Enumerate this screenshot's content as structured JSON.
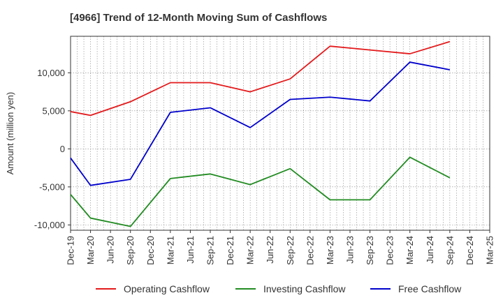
{
  "chart_data": {
    "type": "line",
    "title": "[4966]  Trend of 12-Month Moving Sum of Cashflows",
    "xlabel": "",
    "ylabel": "Amount (million yen)",
    "ylim": [
      -10700,
      14800
    ],
    "yticks": [
      -10000,
      -5000,
      0,
      5000,
      10000
    ],
    "ytick_labels": [
      "-10,000",
      "-5,000",
      "0",
      "5,000",
      "10,000"
    ],
    "categories": [
      "Dec-19",
      "Mar-20",
      "Jun-20",
      "Sep-20",
      "Dec-20",
      "Mar-21",
      "Jun-21",
      "Sep-21",
      "Dec-21",
      "Mar-22",
      "Jun-22",
      "Sep-22",
      "Dec-22",
      "Mar-23",
      "Jun-23",
      "Sep-23",
      "Dec-23",
      "Mar-24",
      "Jun-24",
      "Sep-24",
      "Dec-24",
      "Mar-25"
    ],
    "grid": true,
    "legend_position": "bottom",
    "series": [
      {
        "name": "Operating Cashflow",
        "color": "#e31a1c",
        "points": [
          {
            "x": "Dec-19",
            "y": 4900
          },
          {
            "x": "Mar-20",
            "y": 4400
          },
          {
            "x": "Sep-20",
            "y": 6200
          },
          {
            "x": "Mar-21",
            "y": 8700
          },
          {
            "x": "Sep-21",
            "y": 8700
          },
          {
            "x": "Mar-22",
            "y": 7500
          },
          {
            "x": "Sep-22",
            "y": 9200
          },
          {
            "x": "Mar-23",
            "y": 13500
          },
          {
            "x": "Sep-23",
            "y": 13000
          },
          {
            "x": "Mar-24",
            "y": 12500
          },
          {
            "x": "Sep-24",
            "y": 14100
          }
        ]
      },
      {
        "name": "Investing Cashflow",
        "color": "#228b22",
        "points": [
          {
            "x": "Dec-19",
            "y": -6000
          },
          {
            "x": "Mar-20",
            "y": -9100
          },
          {
            "x": "Sep-20",
            "y": -10200
          },
          {
            "x": "Mar-21",
            "y": -3900
          },
          {
            "x": "Sep-21",
            "y": -3300
          },
          {
            "x": "Mar-22",
            "y": -4700
          },
          {
            "x": "Sep-22",
            "y": -2600
          },
          {
            "x": "Mar-23",
            "y": -6700
          },
          {
            "x": "Sep-23",
            "y": -6700
          },
          {
            "x": "Mar-24",
            "y": -1100
          },
          {
            "x": "Sep-24",
            "y": -3800
          }
        ]
      },
      {
        "name": "Free Cashflow",
        "color": "#0000cc",
        "points": [
          {
            "x": "Dec-19",
            "y": -1200
          },
          {
            "x": "Mar-20",
            "y": -4800
          },
          {
            "x": "Sep-20",
            "y": -4000
          },
          {
            "x": "Mar-21",
            "y": 4800
          },
          {
            "x": "Sep-21",
            "y": 5400
          },
          {
            "x": "Mar-22",
            "y": 2800
          },
          {
            "x": "Sep-22",
            "y": 6500
          },
          {
            "x": "Mar-23",
            "y": 6800
          },
          {
            "x": "Sep-23",
            "y": 6300
          },
          {
            "x": "Mar-24",
            "y": 11400
          },
          {
            "x": "Sep-24",
            "y": 10400
          }
        ]
      }
    ]
  }
}
